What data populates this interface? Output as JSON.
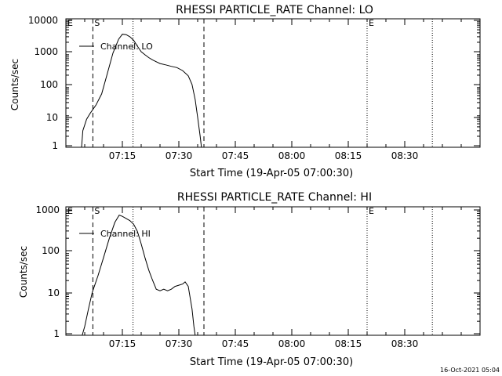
{
  "footer": {
    "timestamp": "16-Oct-2021 05:04"
  },
  "chart_data": [
    {
      "type": "line",
      "title": "RHESSI PARTICLE_RATE Channel: LO",
      "xlabel": "Start Time (19-Apr-05 07:00:30)",
      "ylabel": "Counts/sec",
      "y_scale": "log",
      "ylim": [
        0.9,
        12000
      ],
      "xlim_minutes": [
        0,
        110
      ],
      "x_ticks": [
        "07:15",
        "07:30",
        "07:45",
        "08:00",
        "08:15",
        "08:30"
      ],
      "y_ticks": [
        "1",
        "10",
        "100",
        "1000",
        "10000"
      ],
      "legend": {
        "position": "top-left",
        "entries": [
          "Channel: LO"
        ]
      },
      "markers": [
        {
          "label": "E",
          "time": "07:00",
          "style": "dotted"
        },
        {
          "label": "S",
          "time": "07:07:10",
          "style": "dashed"
        },
        {
          "label": "",
          "time": "07:17:50",
          "style": "dotted"
        },
        {
          "label": "",
          "time": "07:36:40",
          "style": "dashed"
        },
        {
          "label": "E",
          "time": "08:20",
          "style": "dotted"
        },
        {
          "label": "",
          "time": "08:37:20",
          "style": "dotted"
        }
      ],
      "series": [
        {
          "name": "Channel: LO",
          "x": [
            "07:04:10",
            "07:04:30",
            "07:05:30",
            "07:06:30",
            "07:08:00",
            "07:09:30",
            "07:11:00",
            "07:12:30",
            "07:14:00",
            "07:15:00",
            "07:16:00",
            "07:17:00",
            "07:18:00",
            "07:19:00",
            "07:20:00",
            "07:21:00",
            "07:22:00",
            "07:23:00",
            "07:24:00",
            "07:25:00",
            "07:26:30",
            "07:28:00",
            "07:29:30",
            "07:31:00",
            "07:32:30",
            "07:33:30",
            "07:34:20",
            "07:35:00",
            "07:35:40",
            "07:36:00"
          ],
          "y": [
            0.9,
            3,
            7,
            11,
            20,
            45,
            200,
            900,
            2500,
            3600,
            3500,
            3000,
            2300,
            1500,
            1000,
            800,
            650,
            550,
            480,
            420,
            380,
            340,
            310,
            250,
            170,
            90,
            30,
            8,
            2,
            0.9
          ]
        }
      ]
    },
    {
      "type": "line",
      "title": "RHESSI PARTICLE_RATE Channel: HI",
      "xlabel": "Start Time (19-Apr-05 07:00:30)",
      "ylabel": "Counts/sec",
      "y_scale": "log",
      "ylim": [
        0.9,
        1200
      ],
      "xlim_minutes": [
        0,
        110
      ],
      "x_ticks": [
        "07:15",
        "07:30",
        "07:45",
        "08:00",
        "08:15",
        "08:30"
      ],
      "y_ticks": [
        "1",
        "10",
        "100",
        "1000"
      ],
      "legend": {
        "position": "top-left",
        "entries": [
          "Channel: HI"
        ]
      },
      "markers": [
        {
          "label": "E",
          "time": "07:00",
          "style": "dotted"
        },
        {
          "label": "S",
          "time": "07:07:10",
          "style": "dashed"
        },
        {
          "label": "",
          "time": "07:17:50",
          "style": "dotted"
        },
        {
          "label": "",
          "time": "07:36:40",
          "style": "dashed"
        },
        {
          "label": "E",
          "time": "08:20",
          "style": "dotted"
        },
        {
          "label": "",
          "time": "08:37:20",
          "style": "dotted"
        }
      ],
      "series": [
        {
          "name": "Channel: HI",
          "x": [
            "07:04:20",
            "07:05:00",
            "07:06:00",
            "07:07:00",
            "07:08:30",
            "07:10:00",
            "07:11:30",
            "07:13:00",
            "07:14:10",
            "07:15:00",
            "07:16:00",
            "07:17:00",
            "07:18:00",
            "07:19:00",
            "07:20:00",
            "07:21:00",
            "07:22:00",
            "07:23:00",
            "07:24:00",
            "07:25:00",
            "07:26:00",
            "07:27:00",
            "07:28:00",
            "07:29:00",
            "07:30:00",
            "07:31:00",
            "07:31:40",
            "07:32:30",
            "07:33:30",
            "07:34:00",
            "07:34:20"
          ],
          "y": [
            0.9,
            1.5,
            4,
            10,
            25,
            70,
            200,
            500,
            750,
            700,
            620,
            550,
            450,
            300,
            150,
            70,
            35,
            20,
            12,
            11,
            12,
            11,
            12,
            14,
            15,
            16,
            18,
            14,
            4,
            1.5,
            0.9
          ]
        }
      ]
    }
  ]
}
